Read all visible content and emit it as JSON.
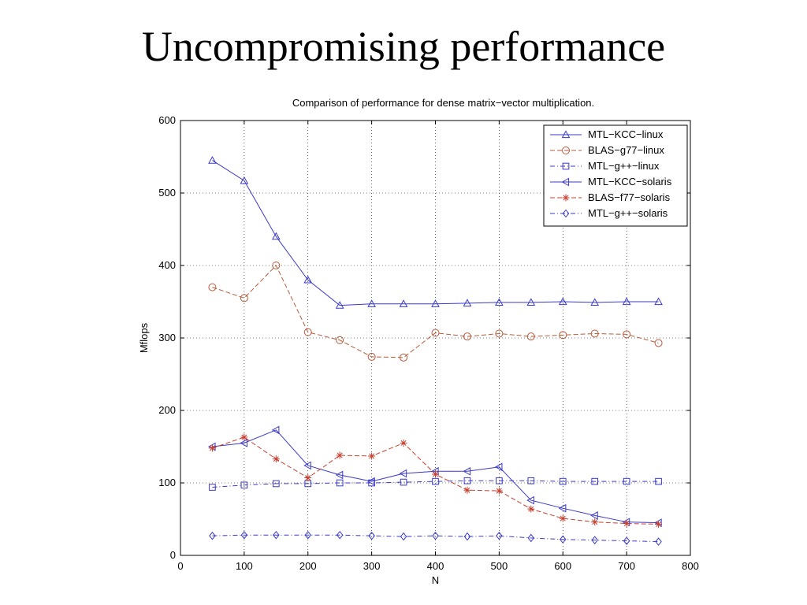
{
  "slide": {
    "title": "Uncompromising performance"
  },
  "chart_data": {
    "type": "line",
    "title": "Comparison of performance for dense matrix−vector multiplication.",
    "xlabel": "N",
    "ylabel": "Mflops",
    "xlim": [
      0,
      800
    ],
    "ylim": [
      0,
      600
    ],
    "xticks": [
      0,
      100,
      200,
      300,
      400,
      500,
      600,
      700,
      800
    ],
    "yticks": [
      0,
      100,
      200,
      300,
      400,
      500,
      600
    ],
    "grid": true,
    "legend_position": "top-right",
    "x": [
      50,
      100,
      150,
      200,
      250,
      300,
      350,
      400,
      450,
      500,
      550,
      600,
      650,
      700,
      750
    ],
    "series": [
      {
        "name": "MTL−KCC−linux",
        "color": "#3a3ac8",
        "line_style": "solid",
        "marker": "triangle-up",
        "values": [
          545,
          517,
          440,
          380,
          345,
          347,
          347,
          347,
          348,
          349,
          349,
          350,
          349,
          350,
          350
        ]
      },
      {
        "name": "BLAS−g77−linux",
        "color": "#b85a3a",
        "line_style": "dashed",
        "marker": "circle",
        "values": [
          370,
          355,
          400,
          308,
          297,
          274,
          273,
          307,
          302,
          306,
          302,
          304,
          306,
          305,
          293
        ]
      },
      {
        "name": "MTL−g++−linux",
        "color": "#3a3ac8",
        "line_style": "dashdot",
        "marker": "square",
        "values": [
          94,
          97,
          99,
          99,
          100,
          100,
          101,
          102,
          103,
          103,
          103,
          102,
          102,
          102,
          102
        ]
      },
      {
        "name": "MTL−KCC−solaris",
        "color": "#3a3ac8",
        "line_style": "solid",
        "marker": "triangle-left",
        "values": [
          150,
          155,
          173,
          124,
          111,
          102,
          113,
          116,
          116,
          122,
          76,
          65,
          55,
          46,
          45
        ]
      },
      {
        "name": "BLAS−f77−solaris",
        "color": "#c84030",
        "line_style": "dashed",
        "marker": "star",
        "values": [
          148,
          163,
          133,
          107,
          138,
          137,
          155,
          112,
          90,
          89,
          64,
          51,
          46,
          44,
          43
        ]
      },
      {
        "name": "MTL−g++−solaris",
        "color": "#3a3ac8",
        "line_style": "dashdot",
        "marker": "diamond",
        "values": [
          27,
          28,
          28,
          28,
          28,
          27,
          26,
          27,
          26,
          27,
          24,
          22,
          21,
          20,
          19
        ]
      }
    ]
  }
}
